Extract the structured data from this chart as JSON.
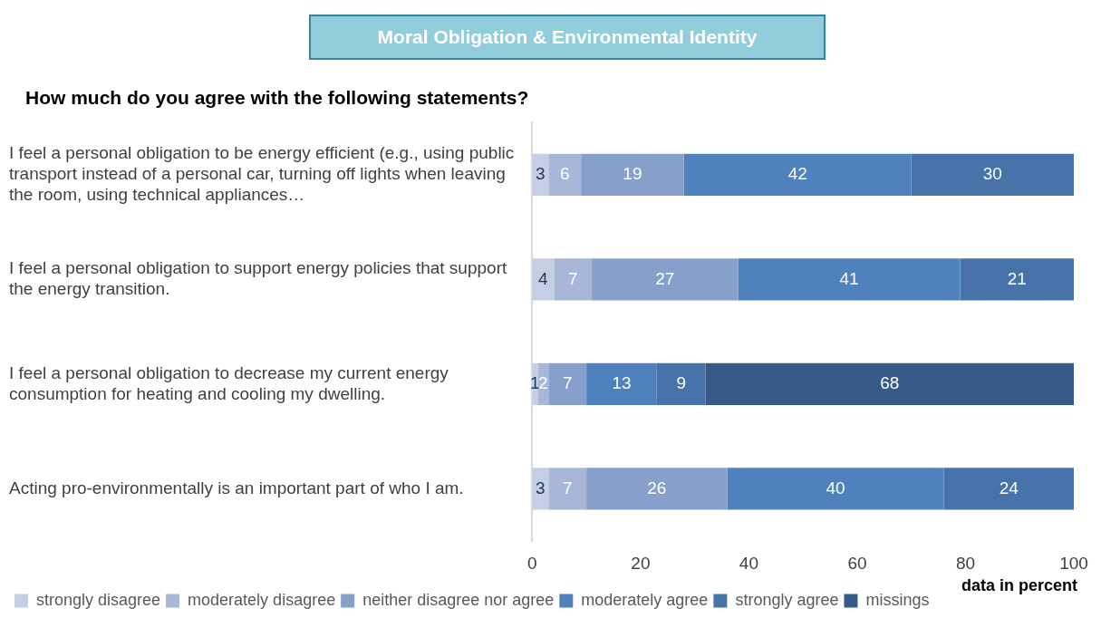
{
  "chart_data": {
    "type": "bar",
    "orientation": "horizontal",
    "stacked": true,
    "title": "Moral Obligation & Environmental Identity",
    "subtitle": "How much do you agree with the following statements?",
    "categories": [
      "I feel a personal obligation to be energy efficient (e.g., using public transport instead of a personal car, turning off lights when leaving the room, using technical appliances…",
      "I feel a personal obligation to support energy policies that support the energy transition.",
      "I feel a personal obligation to decrease my current energy consumption for heating and cooling my dwelling.",
      "Acting pro-environmentally is an important part of who I am."
    ],
    "series": [
      {
        "name": "strongly disagree",
        "color": "#c5cfe3",
        "values": [
          3,
          4,
          1,
          3
        ]
      },
      {
        "name": "moderately disagree",
        "color": "#a8b7d8",
        "values": [
          6,
          7,
          2,
          7
        ]
      },
      {
        "name": "neither disagree nor agree",
        "color": "#86a0cb",
        "values": [
          19,
          27,
          7,
          26
        ]
      },
      {
        "name": "moderately agree",
        "color": "#4f81bd",
        "values": [
          42,
          41,
          13,
          40
        ]
      },
      {
        "name": "strongly agree",
        "color": "#4873aa",
        "values": [
          30,
          21,
          9,
          24
        ]
      },
      {
        "name": "missings",
        "color": "#375b88",
        "values": [
          null,
          null,
          68,
          null
        ]
      }
    ],
    "xlim": [
      0,
      100
    ],
    "xticks": [
      0,
      20,
      40,
      60,
      80,
      100
    ],
    "grid": false,
    "legend": "bottom",
    "data_labels": true,
    "annotations": [
      "data in percent"
    ]
  }
}
